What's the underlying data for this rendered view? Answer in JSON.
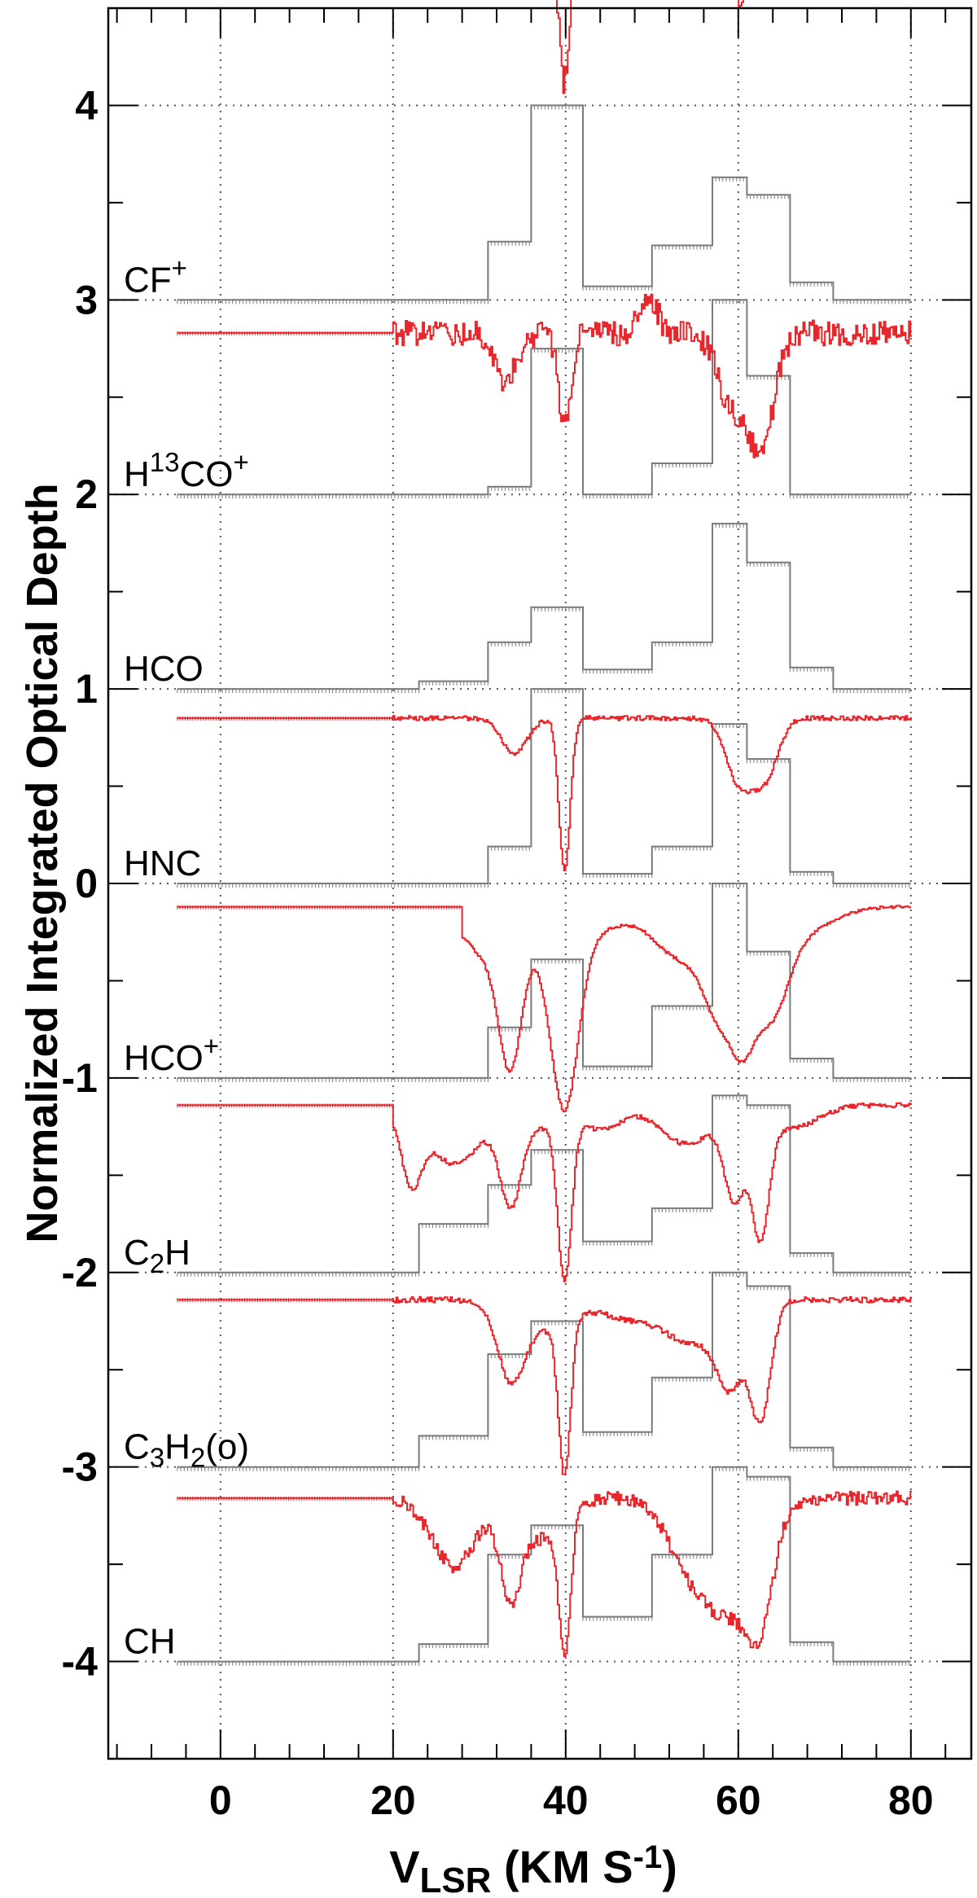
{
  "chart_data": {
    "type": "line",
    "title": "",
    "xlabel": {
      "main": "V",
      "sub": "LSR",
      "rest1": " (KM S",
      "sup": "-1",
      "rest2": ")"
    },
    "ylabel": "Normalized Integrated Optical Depth",
    "xlim": [
      -13,
      87
    ],
    "ylim": [
      -4.5,
      4.5
    ],
    "x_ticks": [
      0,
      20,
      40,
      60,
      80
    ],
    "x_tick_labels": [
      "0",
      "20",
      "40",
      "60",
      "80"
    ],
    "y_ticks": [
      4,
      3,
      2,
      1,
      0,
      -1,
      -2,
      -3,
      -4
    ],
    "y_tick_labels": [
      "4",
      "3",
      "2",
      "1",
      "0",
      "-1",
      "-2",
      "-3",
      "-4"
    ],
    "grid": true,
    "colors": {
      "spectrum": "#e8262b",
      "integrated": "#7a7a7a",
      "frame": "#000000",
      "grid": "#555555"
    },
    "species_labels": [
      {
        "parts": [
          {
            "t": "CF"
          },
          {
            "t": "+",
            "s": "sup"
          }
        ]
      },
      {
        "parts": [
          {
            "t": "H"
          },
          {
            "t": "13",
            "s": "sup"
          },
          {
            "t": "CO"
          },
          {
            "t": "+",
            "s": "sup"
          }
        ]
      },
      {
        "parts": [
          {
            "t": "HCO"
          }
        ]
      },
      {
        "parts": [
          {
            "t": "HNC"
          }
        ]
      },
      {
        "parts": [
          {
            "t": "HCO"
          },
          {
            "t": "+",
            "s": "sup"
          }
        ]
      },
      {
        "parts": [
          {
            "t": "C"
          },
          {
            "t": "2",
            "s": "sub"
          },
          {
            "t": "H"
          }
        ]
      },
      {
        "parts": [
          {
            "t": "C"
          },
          {
            "t": "3",
            "s": "sub"
          },
          {
            "t": "H"
          },
          {
            "t": "2",
            "s": "sub"
          },
          {
            "t": "(o)"
          }
        ]
      },
      {
        "parts": [
          {
            "t": "CH"
          }
        ]
      }
    ],
    "series": [
      {
        "base": 3,
        "spectrum_baseline": 3.85,
        "spectrum_start": 23,
        "flat_start": -5,
        "noise": 0.065,
        "absorptions": [
          {
            "v": 34,
            "w": 1.2,
            "d": 0.1
          },
          {
            "v": 39.8,
            "w": 0.6,
            "d": 0.8
          },
          {
            "v": 61,
            "w": 3.0,
            "d": 0.12
          }
        ],
        "integrated": [
          [
            -5,
            0
          ],
          [
            31,
            0
          ],
          [
            31,
            0.3
          ],
          [
            36,
            0.3
          ],
          [
            36,
            1.0
          ],
          [
            42,
            1.0
          ],
          [
            42,
            0.07
          ],
          [
            50,
            0.07
          ],
          [
            50,
            0.28
          ],
          [
            57,
            0.28
          ],
          [
            57,
            0.63
          ],
          [
            61,
            0.63
          ],
          [
            61,
            0.54
          ],
          [
            66,
            0.54
          ],
          [
            66,
            0.09
          ],
          [
            71,
            0.09
          ],
          [
            71,
            0
          ],
          [
            80,
            0
          ]
        ]
      },
      {
        "base": 2,
        "spectrum_baseline": 2.82,
        "spectrum_start": 28,
        "noise": 0.075,
        "absorptions": [
          {
            "v": 39.8,
            "w": 0.6,
            "d": 0.7
          },
          {
            "v": 60,
            "w": 1.5,
            "d": 0.25
          }
        ],
        "integrated": [
          [
            -5,
            0
          ],
          [
            31,
            0
          ],
          [
            31,
            0.04
          ],
          [
            36,
            0.04
          ],
          [
            36,
            0.75
          ],
          [
            42,
            0.75
          ],
          [
            42,
            0
          ],
          [
            50,
            0
          ],
          [
            50,
            0.16
          ],
          [
            57,
            0.16
          ],
          [
            57,
            1.0
          ],
          [
            61,
            1.0
          ],
          [
            61,
            0.61
          ],
          [
            66,
            0.61
          ],
          [
            66,
            0
          ],
          [
            80,
            0
          ]
        ]
      },
      {
        "base": 1,
        "spectrum_baseline": 1.83,
        "spectrum_start": 20,
        "noise": 0.065,
        "absorptions": [
          {
            "v": 33,
            "w": 1.2,
            "d": 0.25
          },
          {
            "v": 39.8,
            "w": 0.7,
            "d": 0.5
          },
          {
            "v": 49.5,
            "w": 1.0,
            "d": -0.2
          },
          {
            "v": 59,
            "w": 1.5,
            "d": 0.35
          },
          {
            "v": 62.5,
            "w": 1.5,
            "d": 0.6
          }
        ],
        "integrated": [
          [
            -5,
            0
          ],
          [
            23,
            0
          ],
          [
            23,
            0.04
          ],
          [
            31,
            0.04
          ],
          [
            31,
            0.24
          ],
          [
            36,
            0.24
          ],
          [
            36,
            0.42
          ],
          [
            42,
            0.42
          ],
          [
            42,
            0.1
          ],
          [
            50,
            0.1
          ],
          [
            50,
            0.24
          ],
          [
            57,
            0.24
          ],
          [
            57,
            0.85
          ],
          [
            61,
            0.85
          ],
          [
            61,
            0.65
          ],
          [
            66,
            0.65
          ],
          [
            66,
            0.11
          ],
          [
            71,
            0.11
          ],
          [
            71,
            0
          ],
          [
            80,
            0
          ]
        ]
      },
      {
        "base": 0,
        "spectrum_baseline": 0.85,
        "spectrum_start": 20,
        "noise": 0.012,
        "absorptions": [
          {
            "v": 34,
            "w": 1.5,
            "d": 0.18
          },
          {
            "v": 39.8,
            "w": 0.65,
            "d": 0.78
          },
          {
            "v": 60,
            "w": 1.5,
            "d": 0.32
          },
          {
            "v": 63,
            "w": 1.5,
            "d": 0.3
          }
        ],
        "integrated": [
          [
            -5,
            0
          ],
          [
            31,
            0
          ],
          [
            31,
            0.19
          ],
          [
            36,
            0.19
          ],
          [
            36,
            1.0
          ],
          [
            42,
            1.0
          ],
          [
            42,
            0.05
          ],
          [
            50,
            0.05
          ],
          [
            50,
            0.19
          ],
          [
            57,
            0.19
          ],
          [
            57,
            0.82
          ],
          [
            61,
            0.82
          ],
          [
            61,
            0.64
          ],
          [
            66,
            0.64
          ],
          [
            66,
            0.06
          ],
          [
            71,
            0.06
          ],
          [
            71,
            0
          ],
          [
            80,
            0
          ]
        ]
      },
      {
        "base": -1,
        "spectrum_baseline": 0.88,
        "spectrum_start": 28,
        "noise": 0.008,
        "absorptions": [
          {
            "v": 33.5,
            "w": 1.3,
            "d": 0.62
          },
          {
            "v": 39.8,
            "w": 1.6,
            "d": 0.88
          },
          {
            "v": 31,
            "w": 3.0,
            "d": 0.25
          },
          {
            "v": 38,
            "w": 3.0,
            "d": 0.15
          },
          {
            "v": 44,
            "w": 3.0,
            "d": 0.1
          },
          {
            "v": 53,
            "w": 3.0,
            "d": 0.25
          },
          {
            "v": 58,
            "w": 2.0,
            "d": 0.5
          },
          {
            "v": 60.5,
            "w": 1.3,
            "d": 0.35
          },
          {
            "v": 63.5,
            "w": 2.0,
            "d": 0.45
          },
          {
            "v": 66,
            "w": 4.0,
            "d": 0.15
          }
        ],
        "integrated": [
          [
            -5,
            0
          ],
          [
            31,
            0
          ],
          [
            31,
            0.26
          ],
          [
            36,
            0.26
          ],
          [
            36,
            0.61
          ],
          [
            42,
            0.61
          ],
          [
            42,
            0.06
          ],
          [
            50,
            0.06
          ],
          [
            50,
            0.37
          ],
          [
            57,
            0.37
          ],
          [
            57,
            1.0
          ],
          [
            61,
            1.0
          ],
          [
            61,
            0.65
          ],
          [
            66,
            0.65
          ],
          [
            66,
            0.1
          ],
          [
            71,
            0.1
          ],
          [
            71,
            0
          ],
          [
            80,
            0
          ]
        ]
      },
      {
        "base": -2,
        "spectrum_baseline": 0.86,
        "spectrum_start": 20,
        "noise": 0.012,
        "absorptions": [
          {
            "v": 22,
            "w": 1.2,
            "d": 0.35
          },
          {
            "v": 27,
            "w": 3.0,
            "d": 0.3
          },
          {
            "v": 33.5,
            "w": 1.2,
            "d": 0.42
          },
          {
            "v": 36,
            "w": 3.0,
            "d": 0.12
          },
          {
            "v": 39.8,
            "w": 0.8,
            "d": 0.82
          },
          {
            "v": 44,
            "w": 2.5,
            "d": 0.12
          },
          {
            "v": 54,
            "w": 3.0,
            "d": 0.2
          },
          {
            "v": 59.5,
            "w": 1.2,
            "d": 0.45
          },
          {
            "v": 62.5,
            "w": 1.0,
            "d": 0.62
          },
          {
            "v": 66,
            "w": 3.0,
            "d": 0.12
          }
        ],
        "integrated": [
          [
            -5,
            0
          ],
          [
            23,
            0
          ],
          [
            23,
            0.25
          ],
          [
            31,
            0.25
          ],
          [
            31,
            0.45
          ],
          [
            36,
            0.45
          ],
          [
            36,
            0.63
          ],
          [
            42,
            0.63
          ],
          [
            42,
            0.16
          ],
          [
            50,
            0.16
          ],
          [
            50,
            0.33
          ],
          [
            57,
            0.33
          ],
          [
            57,
            0.91
          ],
          [
            61,
            0.91
          ],
          [
            61,
            0.86
          ],
          [
            66,
            0.86
          ],
          [
            66,
            0.1
          ],
          [
            71,
            0.1
          ],
          [
            71,
            0
          ],
          [
            80,
            0
          ]
        ]
      },
      {
        "base": -3,
        "spectrum_baseline": 0.86,
        "spectrum_start": 20,
        "noise": 0.015,
        "absorptions": [
          {
            "v": 33.5,
            "w": 1.5,
            "d": 0.35
          },
          {
            "v": 39.8,
            "w": 0.7,
            "d": 0.8
          },
          {
            "v": 37,
            "w": 3.0,
            "d": 0.15
          },
          {
            "v": 48,
            "w": 4.0,
            "d": 0.1
          },
          {
            "v": 55,
            "w": 3.0,
            "d": 0.2
          },
          {
            "v": 59,
            "w": 1.5,
            "d": 0.38
          },
          {
            "v": 62.5,
            "w": 1.2,
            "d": 0.6
          }
        ],
        "integrated": [
          [
            -5,
            0
          ],
          [
            23,
            0
          ],
          [
            23,
            0.16
          ],
          [
            31,
            0.16
          ],
          [
            31,
            0.58
          ],
          [
            36,
            0.58
          ],
          [
            36,
            0.75
          ],
          [
            42,
            0.75
          ],
          [
            42,
            0.18
          ],
          [
            50,
            0.18
          ],
          [
            50,
            0.46
          ],
          [
            57,
            0.46
          ],
          [
            57,
            1.0
          ],
          [
            61,
            1.0
          ],
          [
            61,
            0.93
          ],
          [
            66,
            0.93
          ],
          [
            66,
            0.1
          ],
          [
            71,
            0.1
          ],
          [
            71,
            0
          ],
          [
            80,
            0
          ]
        ]
      },
      {
        "base": -4,
        "spectrum_baseline": 0.84,
        "spectrum_start": 20,
        "noise": 0.035,
        "absorptions": [
          {
            "v": 27,
            "w": 2.5,
            "d": 0.35
          },
          {
            "v": 33.5,
            "w": 1.2,
            "d": 0.45
          },
          {
            "v": 39.8,
            "w": 0.7,
            "d": 0.7
          },
          {
            "v": 37,
            "w": 2.5,
            "d": 0.2
          },
          {
            "v": 54,
            "w": 2.5,
            "d": 0.28
          },
          {
            "v": 59,
            "w": 3.0,
            "d": 0.55
          },
          {
            "v": 62.5,
            "w": 1.5,
            "d": 0.45
          }
        ],
        "integrated": [
          [
            -5,
            0
          ],
          [
            23,
            0
          ],
          [
            23,
            0.09
          ],
          [
            31,
            0.09
          ],
          [
            31,
            0.55
          ],
          [
            36,
            0.55
          ],
          [
            36,
            0.7
          ],
          [
            42,
            0.7
          ],
          [
            42,
            0.23
          ],
          [
            50,
            0.23
          ],
          [
            50,
            0.55
          ],
          [
            57,
            0.55
          ],
          [
            57,
            1.0
          ],
          [
            61,
            1.0
          ],
          [
            61,
            0.95
          ],
          [
            66,
            0.95
          ],
          [
            66,
            0.1
          ],
          [
            71,
            0.1
          ],
          [
            71,
            0
          ],
          [
            80,
            0
          ]
        ]
      }
    ]
  }
}
